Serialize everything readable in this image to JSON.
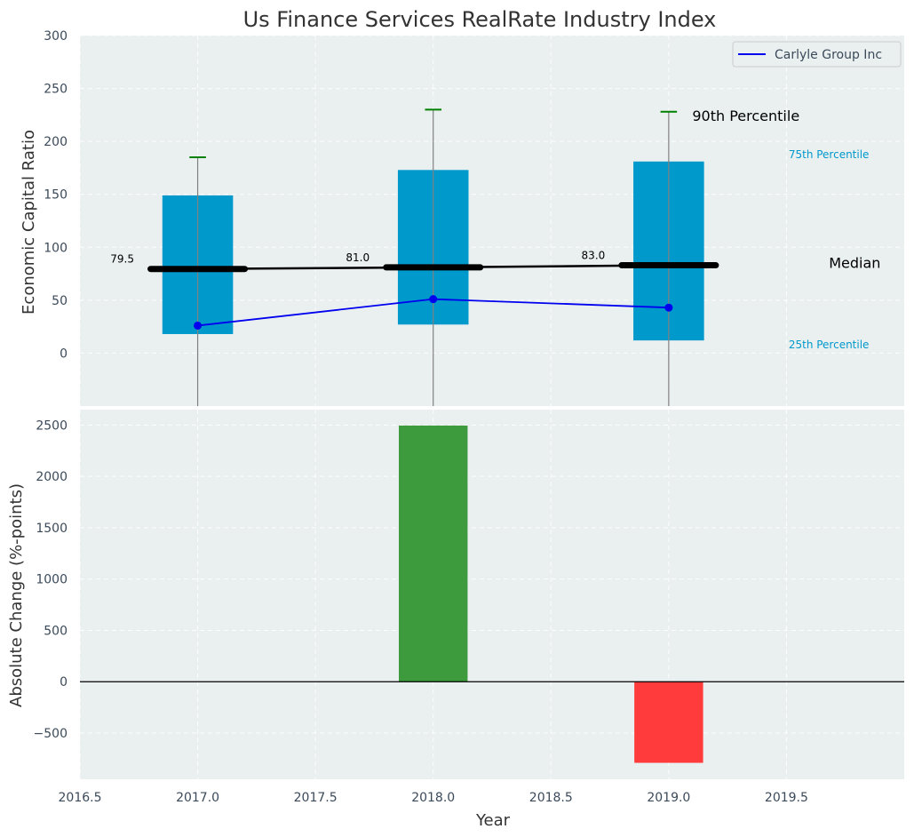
{
  "chart_data": [
    {
      "type": "box",
      "title": "Us Finance Services RealRate Industry Index",
      "ylabel": "Economic Capital Ratio",
      "xlim": [
        2016.5,
        2020.0
      ],
      "ylim": [
        -50,
        300
      ],
      "yticks": [
        0,
        50,
        100,
        150,
        200,
        250,
        300
      ],
      "categories": [
        2017,
        2018,
        2019
      ],
      "boxes": [
        {
          "x": 2017,
          "q1": 18,
          "median": 79.5,
          "q3": 149,
          "p90": 185
        },
        {
          "x": 2018,
          "q1": 27,
          "median": 81.0,
          "q3": 173,
          "p90": 230
        },
        {
          "x": 2019,
          "q1": 12,
          "median": 83.0,
          "q3": 181,
          "p90": 228
        }
      ],
      "median_labels": [
        "79.5",
        "81.0",
        "83.0"
      ],
      "company_series": {
        "name": "Carlyle Group Inc",
        "values": [
          26,
          51,
          43
        ],
        "color": "#0000ee"
      },
      "annotations": {
        "p90": "90th Percentile",
        "p75": "75th Percentile",
        "median": "Median",
        "p25": "25th Percentile"
      },
      "legend_placement": "top-right",
      "grid": true,
      "colors": {
        "box": "#0099cc",
        "median": "#000000",
        "whisker_cap": "#008000",
        "whisker": "#808080",
        "background": "#eaeff0"
      }
    },
    {
      "type": "bar",
      "ylabel": "Absolute Change (%-points)",
      "xlabel": "Year",
      "xlim": [
        2016.5,
        2020.0
      ],
      "ylim": [
        -950,
        2650
      ],
      "xticks": [
        2016.5,
        2017.0,
        2017.5,
        2018.0,
        2018.5,
        2019.0,
        2019.5
      ],
      "xtick_labels": [
        "2016.5",
        "2017.0",
        "2017.5",
        "2018.0",
        "2018.5",
        "2019.0",
        "2019.5"
      ],
      "yticks": [
        -500,
        0,
        500,
        1000,
        1500,
        2000,
        2500
      ],
      "ytick_labels": [
        "−500",
        "0",
        "500",
        "1000",
        "1500",
        "2000",
        "2500"
      ],
      "x": [
        2018,
        2019
      ],
      "values": [
        2495,
        -790
      ],
      "colors": {
        "positive": "#3d9a3d",
        "negative": "#ff3b3b",
        "zero_line": "#000000"
      },
      "grid": true
    }
  ]
}
